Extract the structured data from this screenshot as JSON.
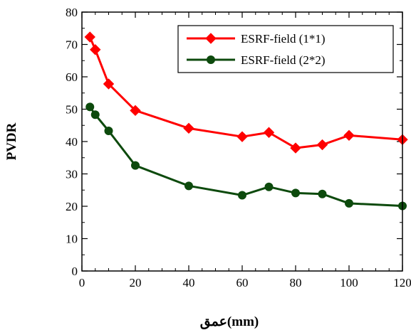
{
  "chart_data": {
    "type": "line",
    "title": "",
    "xlabel": "عمق(mm)",
    "ylabel": "PVDR",
    "xlim": [
      0,
      120
    ],
    "ylim": [
      0,
      80
    ],
    "xticks": [
      0,
      20,
      40,
      60,
      80,
      100,
      120
    ],
    "yticks": [
      0,
      10,
      20,
      30,
      40,
      50,
      60,
      70,
      80
    ],
    "grid": false,
    "legend_position": "top-right",
    "series": [
      {
        "name": "ESRF-field (1*1)",
        "color": "#ff0000",
        "marker": "diamond",
        "x": [
          3,
          5,
          10,
          20,
          40,
          60,
          70,
          80,
          90,
          100,
          120
        ],
        "y": [
          72.3,
          68.4,
          57.8,
          49.6,
          44.1,
          41.5,
          42.8,
          38.0,
          39.0,
          41.9,
          40.6
        ]
      },
      {
        "name": "ESRF-field (2*2)",
        "color": "#0d4a0d",
        "marker": "circle",
        "x": [
          3,
          5,
          10,
          20,
          40,
          60,
          70,
          80,
          90,
          100,
          120
        ],
        "y": [
          50.7,
          48.3,
          43.3,
          32.6,
          26.3,
          23.4,
          26.0,
          24.1,
          23.8,
          20.9,
          20.1
        ]
      }
    ]
  }
}
